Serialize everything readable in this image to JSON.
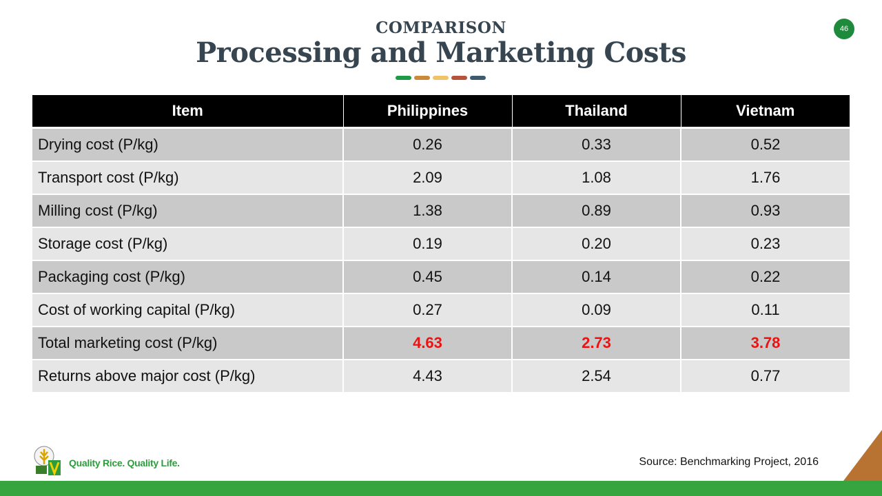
{
  "header": {
    "kicker": "COMPARISON",
    "title": "Processing and Marketing Costs",
    "page_number": "46",
    "dot_colors": [
      "#1e9a46",
      "#c98a3a",
      "#f2c26a",
      "#b5543a",
      "#3e5a6e"
    ]
  },
  "table": {
    "columns": [
      "Item",
      "Philippines",
      "Thailand",
      "Vietnam"
    ],
    "rows": [
      {
        "item": "Drying cost (P/kg)",
        "values": [
          "0.26",
          "0.33",
          "0.52"
        ]
      },
      {
        "item": "Transport cost (P/kg)",
        "values": [
          "2.09",
          "1.08",
          "1.76"
        ]
      },
      {
        "item": "Milling cost (P/kg)",
        "values": [
          "1.38",
          "0.89",
          "0.93"
        ]
      },
      {
        "item": "Storage cost (P/kg)",
        "values": [
          "0.19",
          "0.20",
          "0.23"
        ]
      },
      {
        "item": "Packaging cost (P/kg)",
        "values": [
          "0.45",
          "0.14",
          "0.22"
        ]
      },
      {
        "item": "Cost of working capital (P/kg)",
        "values": [
          "0.27",
          "0.09",
          "0.11"
        ]
      },
      {
        "item": "Total marketing cost (P/kg)",
        "values": [
          "4.63",
          "2.73",
          "3.78"
        ],
        "highlight": true
      },
      {
        "item": "Returns above major cost (P/kg)",
        "values": [
          "4.43",
          "2.54",
          "0.77"
        ]
      }
    ]
  },
  "footer": {
    "source": "Source: Benchmarking Project, 2016",
    "tagline": "Quality Rice. Quality Life.",
    "logo_icon": "rice-institute-logo-icon",
    "accent_green": "#37a53f",
    "corner_color": "#b87333"
  }
}
